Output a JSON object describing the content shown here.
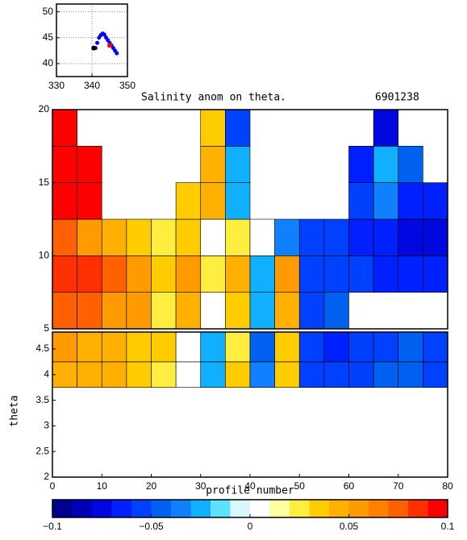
{
  "chart_data": [
    {
      "type": "scatter",
      "xlim": [
        330,
        350
      ],
      "ylim": [
        37.5,
        51.5
      ],
      "xticks": [
        330,
        340,
        350
      ],
      "yticks": [
        40,
        45,
        50
      ],
      "grid": true,
      "series": [
        {
          "color": "#0000ff",
          "x": [
            341,
            341.5,
            342,
            342.5,
            343,
            343.5,
            344,
            344.5,
            345,
            345.5,
            346,
            346.5,
            347
          ],
          "y": [
            43,
            44,
            45,
            45.5,
            45.8,
            45.6,
            45,
            44.5,
            44,
            43.5,
            43,
            42.5,
            42
          ]
        },
        {
          "color": "#000000",
          "x": [
            340.5
          ],
          "y": [
            43
          ]
        },
        {
          "color": "#ff0000",
          "x": [
            345
          ],
          "y": [
            43.5
          ]
        }
      ]
    },
    {
      "type": "heatmap",
      "title": "Salinity anom on theta.",
      "subtitle": "6901238",
      "xlim": [
        0,
        80
      ],
      "ylim": [
        5,
        20
      ],
      "yticks": [
        5,
        10,
        15,
        20
      ],
      "x_bins": [
        0,
        5,
        10,
        15,
        20,
        25,
        30,
        35,
        40,
        45,
        50,
        55,
        60,
        65,
        70,
        75,
        80
      ],
      "y_bins": [
        5,
        7.5,
        10,
        12.5,
        15,
        17.5,
        20
      ],
      "z": [
        [
          0.07,
          0.07,
          0.06,
          0.05,
          0.02,
          0.04,
          0.0,
          0.03,
          -0.02,
          0.04,
          -0.06,
          -0.05,
          null,
          null,
          null,
          null
        ],
        [
          0.08,
          0.08,
          0.07,
          0.06,
          0.03,
          0.05,
          0.02,
          0.04,
          -0.03,
          0.05,
          -0.06,
          -0.06,
          -0.06,
          -0.07,
          -0.07,
          -0.07
        ],
        [
          0.07,
          0.06,
          0.04,
          0.03,
          0.02,
          0.03,
          0.01,
          0.02,
          0.0,
          -0.04,
          -0.06,
          -0.06,
          -0.07,
          -0.07,
          -0.08,
          -0.08
        ],
        [
          0.09,
          0.09,
          null,
          null,
          null,
          0.03,
          0.04,
          -0.02,
          null,
          null,
          null,
          null,
          -0.06,
          -0.04,
          -0.07,
          -0.07
        ],
        [
          0.09,
          0.09,
          null,
          null,
          null,
          null,
          0.04,
          -0.03,
          null,
          null,
          null,
          null,
          -0.07,
          -0.02,
          -0.05,
          null
        ],
        [
          0.09,
          null,
          null,
          null,
          null,
          null,
          0.03,
          -0.06,
          null,
          null,
          null,
          null,
          null,
          -0.08,
          null,
          null
        ]
      ]
    },
    {
      "type": "heatmap",
      "xlabel": "profile number",
      "ylabel": "theta",
      "xlim": [
        0,
        80
      ],
      "ylim": [
        2,
        4.83
      ],
      "xticks": [
        0,
        10,
        20,
        30,
        40,
        50,
        60,
        70,
        80
      ],
      "yticks": [
        2,
        2.5,
        3,
        3.5,
        4,
        4.5
      ],
      "x_bins": [
        0,
        5,
        10,
        15,
        20,
        25,
        30,
        35,
        40,
        45,
        50,
        55,
        60,
        65,
        70,
        75,
        80
      ],
      "y_bins": [
        3.75,
        4.25,
        4.83
      ],
      "z": [
        [
          0.04,
          0.04,
          0.04,
          0.03,
          0.02,
          0.0,
          -0.02,
          0.03,
          -0.04,
          0.03,
          -0.06,
          -0.06,
          -0.06,
          -0.05,
          -0.05,
          -0.06
        ],
        [
          0.05,
          0.04,
          0.04,
          0.03,
          0.03,
          0.01,
          -0.03,
          0.02,
          -0.05,
          0.03,
          -0.06,
          -0.07,
          -0.06,
          -0.06,
          -0.05,
          -0.06
        ]
      ]
    },
    {
      "type": "colorbar",
      "xlim": [
        -0.1,
        0.1
      ],
      "colors": [
        "#000090",
        "#0000b8",
        "#0008e0",
        "#0020ff",
        "#0040ff",
        "#0060f0",
        "#1080ff",
        "#10b0ff",
        "#60e0ff",
        "#d8f8ff",
        "#ffffff",
        "#ffffa0",
        "#ffee40",
        "#ffcc00",
        "#ffb000",
        "#ff9a00",
        "#ff8000",
        "#ff6000",
        "#ff3000",
        "#ff0000"
      ],
      "xticks": [
        {
          "value": -0.1,
          "label": "−0.1"
        },
        {
          "value": -0.05,
          "label": "−0.05"
        },
        0,
        0.05,
        0.1
      ]
    }
  ]
}
